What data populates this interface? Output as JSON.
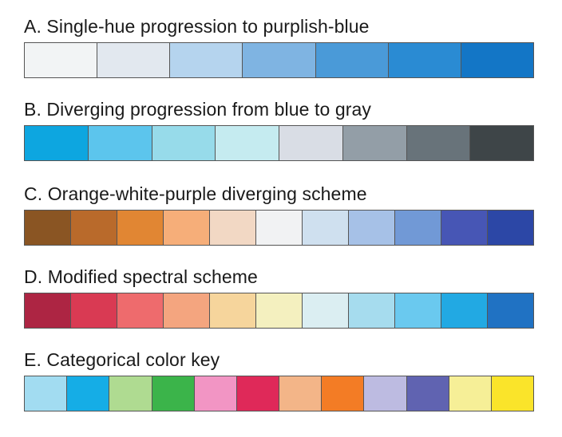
{
  "schemes": [
    {
      "title": "A. Single-hue progression to purplish-blue",
      "colors": [
        "#f2f4f5",
        "#e2e8ef",
        "#b5d4ee",
        "#7fb4e2",
        "#4a9ad8",
        "#2a8bd3",
        "#1376c6"
      ]
    },
    {
      "title": "B. Diverging progression from blue to gray",
      "colors": [
        "#0da6e0",
        "#5cc5ed",
        "#97dbea",
        "#c5ebf0",
        "#d9dde5",
        "#939ea7",
        "#68737a",
        "#3e4548"
      ]
    },
    {
      "title": "C. Orange-white-purple diverging scheme",
      "colors": [
        "#8a5523",
        "#b96a2b",
        "#e18633",
        "#f6ae79",
        "#f2d8c4",
        "#f1f2f3",
        "#cfe0ef",
        "#a6c1e7",
        "#7199d6",
        "#4756b5",
        "#2c47a6"
      ]
    },
    {
      "title": "D. Modified spectral scheme",
      "colors": [
        "#ad2543",
        "#d93a53",
        "#ee6b6d",
        "#f4a57f",
        "#f6d59c",
        "#f4f0bf",
        "#dbeef2",
        "#a6dcee",
        "#6ac9ef",
        "#22a9e3",
        "#2072c3"
      ]
    },
    {
      "title": "E. Categorical color key",
      "colors": [
        "#a2dcf1",
        "#15ade6",
        "#afdb91",
        "#3bb44a",
        "#f295c4",
        "#df2959",
        "#f3b588",
        "#f37c25",
        "#bdbbe1",
        "#6063b1",
        "#f6ef97",
        "#fae42a"
      ]
    }
  ]
}
